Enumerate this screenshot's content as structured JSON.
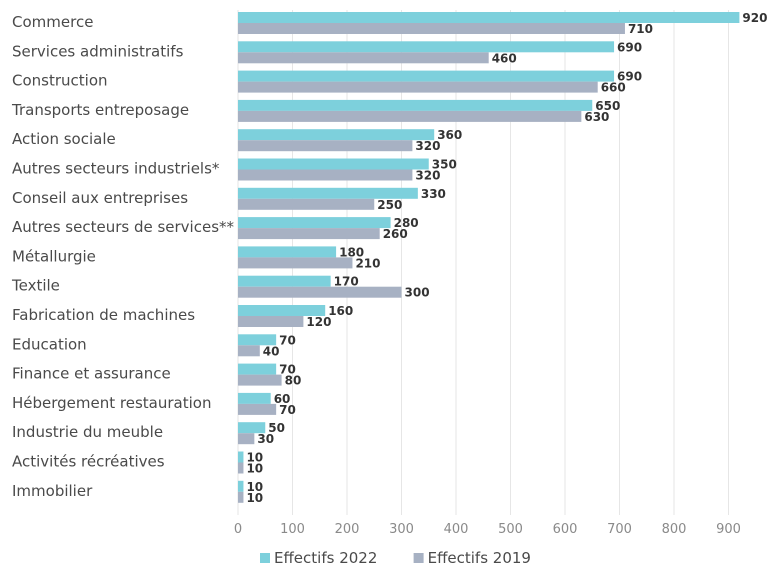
{
  "chart_data": {
    "type": "bar",
    "orientation": "horizontal",
    "categories": [
      "Commerce",
      "Services administratifs",
      "Construction",
      "Transports entreposage",
      "Action sociale",
      "Autres secteurs industriels*",
      "Conseil aux entreprises",
      "Autres secteurs de services**",
      "Métallurgie",
      "Textile",
      "Fabrication de machines",
      "Education",
      "Finance et assurance",
      "Hébergement restauration",
      "Industrie du meuble",
      "Activités récréatives",
      "Immobilier"
    ],
    "series": [
      {
        "name": "Effectifs 2022",
        "color": "#7dd0dc",
        "values": [
          920,
          690,
          690,
          650,
          360,
          350,
          330,
          280,
          180,
          170,
          160,
          70,
          70,
          60,
          50,
          10,
          10
        ]
      },
      {
        "name": "Effectifs 2019",
        "color": "#a7b1c3",
        "values": [
          710,
          460,
          660,
          630,
          320,
          320,
          250,
          260,
          210,
          300,
          120,
          40,
          80,
          70,
          30,
          10,
          10
        ]
      }
    ],
    "xlim": [
      0,
      900
    ],
    "xticks": [
      0,
      100,
      200,
      300,
      400,
      500,
      600,
      700,
      800,
      900
    ],
    "grid": "vertical",
    "legend": "bottom-center",
    "title": "",
    "xlabel": "",
    "ylabel": ""
  }
}
